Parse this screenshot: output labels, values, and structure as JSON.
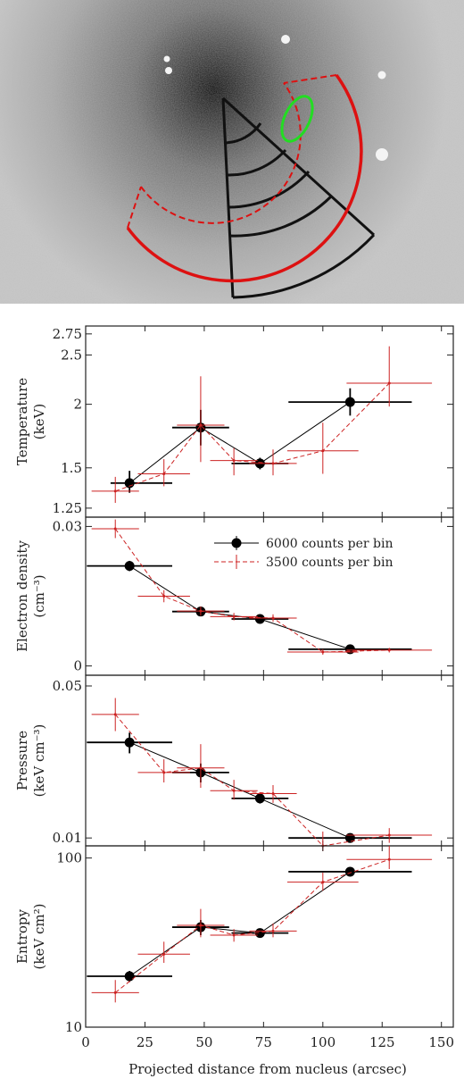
{
  "image": {
    "description_colors": {
      "region_black": "#111111",
      "region_red": "#dd1111",
      "region_green": "#22dd22"
    }
  },
  "chart_data": [
    {
      "type": "scatter",
      "ylabel_lines": [
        "Temperature",
        "(keV)"
      ],
      "yscale": "log",
      "ylim": [
        1.2,
        2.85
      ],
      "yticks": [
        "1.25",
        "1.5",
        "2",
        "2.5",
        "2.75"
      ],
      "ytick_values": [
        1.25,
        1.5,
        2,
        2.5,
        2.75
      ],
      "series": [
        {
          "key": "s6000",
          "points": [
            {
              "x": 18.5,
              "xerr": [
                8,
                18
              ],
              "y": 1.4,
              "yerr": [
                0.06,
                0.08
              ]
            },
            {
              "x": 48.5,
              "xerr": [
                12,
                12
              ],
              "y": 1.8,
              "yerr": [
                0.14,
                0.15
              ]
            },
            {
              "x": 73.5,
              "xerr": [
                12,
                12
              ],
              "y": 1.53,
              "yerr": [
                0.04,
                0.04
              ]
            },
            {
              "x": 111.5,
              "xerr": [
                26,
                26
              ],
              "y": 2.02,
              "yerr": [
                0.12,
                0.13
              ]
            }
          ]
        },
        {
          "key": "s3500",
          "points": [
            {
              "x": 12.5,
              "xerr": [
                10,
                10
              ],
              "y": 1.35,
              "yerr": [
                0.07,
                0.09
              ]
            },
            {
              "x": 33,
              "xerr": [
                11,
                11
              ],
              "y": 1.46,
              "yerr": [
                0.08,
                0.1
              ]
            },
            {
              "x": 48.5,
              "xerr": [
                10,
                10
              ],
              "y": 1.82,
              "yerr": [
                0.28,
                0.45
              ]
            },
            {
              "x": 62.5,
              "xerr": [
                10,
                10
              ],
              "y": 1.55,
              "yerr": [
                0.1,
                0.09
              ]
            },
            {
              "x": 79,
              "xerr": [
                10,
                10
              ],
              "y": 1.53,
              "yerr": [
                0.08,
                0.1
              ]
            },
            {
              "x": 100,
              "xerr": [
                15,
                15
              ],
              "y": 1.62,
              "yerr": [
                0.16,
                0.22
              ]
            },
            {
              "x": 128,
              "xerr": [
                18,
                18
              ],
              "y": 2.2,
              "yerr": [
                0.22,
                0.4
              ]
            }
          ]
        }
      ]
    },
    {
      "type": "scatter",
      "ylabel_lines": [
        "Electron density",
        "(cm⁻³)"
      ],
      "yscale": "linear",
      "ylim": [
        -0.002,
        0.032
      ],
      "yticks": [
        "0",
        "0.03"
      ],
      "ytick_values": [
        0,
        0.03
      ],
      "series": [
        {
          "key": "s6000",
          "points": [
            {
              "x": 18.5,
              "xerr": [
                18,
                18
              ],
              "y": 0.0215,
              "yerr": [
                0.0011,
                0.0011
              ]
            },
            {
              "x": 48.5,
              "xerr": [
                12,
                12
              ],
              "y": 0.0117,
              "yerr": [
                0.0008,
                0.0008
              ]
            },
            {
              "x": 73.5,
              "xerr": [
                12,
                12
              ],
              "y": 0.0101,
              "yerr": [
                0.0007,
                0.0007
              ]
            },
            {
              "x": 111.5,
              "xerr": [
                26,
                26
              ],
              "y": 0.0036,
              "yerr": [
                0.0005,
                0.0005
              ]
            }
          ]
        },
        {
          "key": "s3500",
          "points": [
            {
              "x": 12.5,
              "xerr": [
                10,
                10
              ],
              "y": 0.0295,
              "yerr": [
                0.002,
                0.002
              ]
            },
            {
              "x": 33,
              "xerr": [
                11,
                11
              ],
              "y": 0.015,
              "yerr": [
                0.0013,
                0.0013
              ]
            },
            {
              "x": 48.5,
              "xerr": [
                10,
                10
              ],
              "y": 0.0118,
              "yerr": [
                0.001,
                0.001
              ]
            },
            {
              "x": 62.5,
              "xerr": [
                10,
                10
              ],
              "y": 0.0106,
              "yerr": [
                0.0008,
                0.0008
              ]
            },
            {
              "x": 79,
              "xerr": [
                10,
                10
              ],
              "y": 0.0103,
              "yerr": [
                0.0008,
                0.0008
              ]
            },
            {
              "x": 100,
              "xerr": [
                15,
                15
              ],
              "y": 0.003,
              "yerr": [
                0.0006,
                0.0006
              ]
            },
            {
              "x": 128,
              "xerr": [
                18,
                18
              ],
              "y": 0.0034,
              "yerr": [
                0.0005,
                0.0005
              ]
            }
          ]
        }
      ],
      "legend": {
        "placement": "top-right",
        "entries": [
          {
            "key": "s6000",
            "label": "6000 counts per bin",
            "color": "#000000"
          },
          {
            "key": "s3500",
            "label": "3500 counts per bin",
            "color": "#cc2222"
          }
        ]
      }
    },
    {
      "type": "scatter",
      "ylabel_lines": [
        "Pressure",
        "(keV cm⁻³)"
      ],
      "yscale": "log",
      "ylim": [
        0.0092,
        0.056
      ],
      "yticks": [
        "0.01",
        "0.05"
      ],
      "ytick_values": [
        0.01,
        0.05
      ],
      "series": [
        {
          "key": "s6000",
          "points": [
            {
              "x": 18.5,
              "xerr": [
                18,
                18
              ],
              "y": 0.0275,
              "yerr": [
                0.003,
                0.003
              ]
            },
            {
              "x": 48.5,
              "xerr": [
                12,
                12
              ],
              "y": 0.02,
              "yerr": [
                0.002,
                0.002
              ]
            },
            {
              "x": 73.5,
              "xerr": [
                12,
                12
              ],
              "y": 0.0152,
              "yerr": [
                0.0008,
                0.0008
              ]
            },
            {
              "x": 111.5,
              "xerr": [
                26,
                26
              ],
              "y": 0.01,
              "yerr": [
                0.0005,
                0.0005
              ]
            }
          ]
        },
        {
          "key": "s3500",
          "points": [
            {
              "x": 12.5,
              "xerr": [
                10,
                10
              ],
              "y": 0.037,
              "yerr": [
                0.006,
                0.007
              ]
            },
            {
              "x": 33,
              "xerr": [
                11,
                11
              ],
              "y": 0.02,
              "yerr": [
                0.002,
                0.003
              ]
            },
            {
              "x": 48.5,
              "xerr": [
                10,
                10
              ],
              "y": 0.021,
              "yerr": [
                0.004,
                0.006
              ]
            },
            {
              "x": 62.5,
              "xerr": [
                10,
                10
              ],
              "y": 0.0165,
              "yerr": [
                0.0015,
                0.002
              ]
            },
            {
              "x": 79,
              "xerr": [
                10,
                10
              ],
              "y": 0.016,
              "yerr": [
                0.0015,
                0.0015
              ]
            },
            {
              "x": 100,
              "xerr": [
                15,
                15
              ],
              "y": 0.0092,
              "yerr": [
                0.0005,
                0.0015
              ]
            },
            {
              "x": 128,
              "xerr": [
                18,
                18
              ],
              "y": 0.0103,
              "yerr": [
                0.0008,
                0.0008
              ]
            }
          ]
        }
      ]
    },
    {
      "type": "scatter",
      "ylabel_lines": [
        "Entropy",
        "(keV cm²)"
      ],
      "yscale": "log",
      "ylim": [
        10,
        118
      ],
      "yticks": [
        "10",
        "100"
      ],
      "ytick_values": [
        10,
        100
      ],
      "xlabel": "Projected distance from nucleus (arcsec)",
      "xticks": [
        "0",
        "25",
        "50",
        "75",
        "100",
        "125",
        "150"
      ],
      "xtick_values": [
        0,
        25,
        50,
        75,
        100,
        125,
        150
      ],
      "series": [
        {
          "key": "s6000",
          "points": [
            {
              "x": 18.5,
              "xerr": [
                18,
                18
              ],
              "y": 20,
              "yerr": [
                1.5,
                1.5
              ]
            },
            {
              "x": 48.5,
              "xerr": [
                12,
                12
              ],
              "y": 39,
              "yerr": [
                4,
                4
              ]
            },
            {
              "x": 73.5,
              "xerr": [
                12,
                12
              ],
              "y": 36,
              "yerr": [
                2,
                2
              ]
            },
            {
              "x": 111.5,
              "xerr": [
                26,
                26
              ],
              "y": 83,
              "yerr": [
                5,
                5
              ]
            }
          ]
        },
        {
          "key": "s3500",
          "points": [
            {
              "x": 12.5,
              "xerr": [
                10,
                10
              ],
              "y": 16,
              "yerr": [
                2,
                3
              ]
            },
            {
              "x": 33,
              "xerr": [
                11,
                11
              ],
              "y": 27,
              "yerr": [
                3,
                5
              ]
            },
            {
              "x": 48.5,
              "xerr": [
                10,
                10
              ],
              "y": 40,
              "yerr": [
                6,
                10
              ]
            },
            {
              "x": 62.5,
              "xerr": [
                10,
                10
              ],
              "y": 35,
              "yerr": [
                3,
                3
              ]
            },
            {
              "x": 79,
              "xerr": [
                10,
                10
              ],
              "y": 37,
              "yerr": [
                3,
                4
              ]
            },
            {
              "x": 100,
              "xerr": [
                15,
                15
              ],
              "y": 72,
              "yerr": [
                8,
                10
              ]
            },
            {
              "x": 128,
              "xerr": [
                18,
                18
              ],
              "y": 98,
              "yerr": [
                12,
                20
              ]
            }
          ]
        }
      ]
    }
  ],
  "shared_x": {
    "xlim": [
      0,
      155
    ]
  }
}
